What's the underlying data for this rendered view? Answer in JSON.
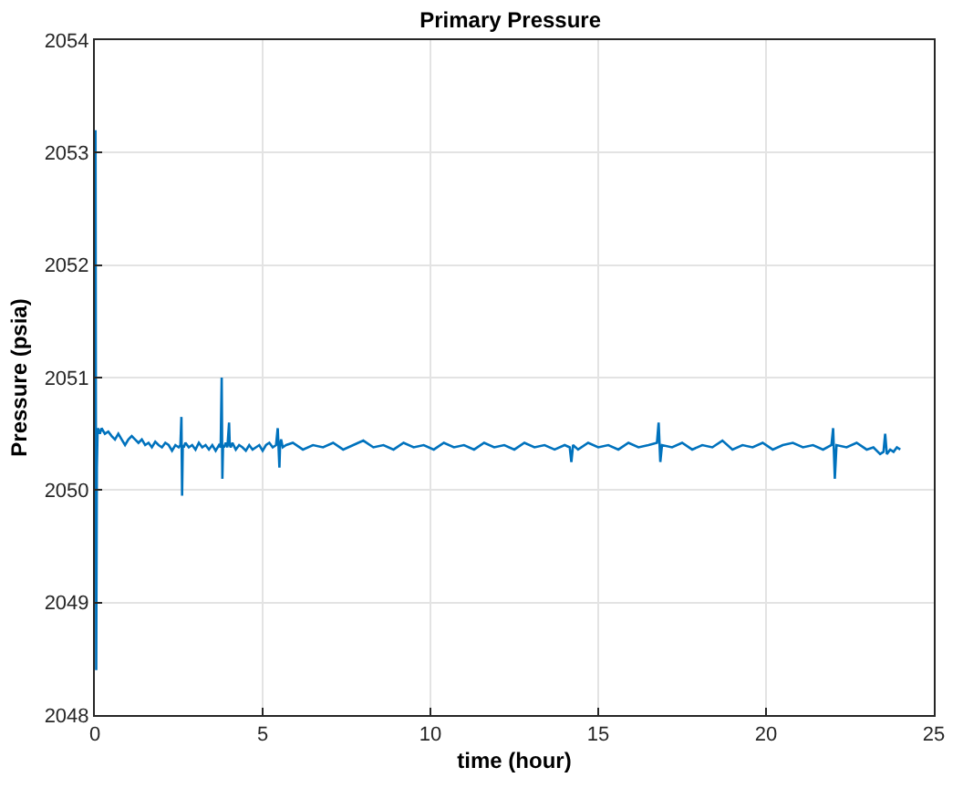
{
  "chart_data": {
    "type": "line",
    "title": "Primary Pressure",
    "xlabel": "time (hour)",
    "ylabel": "Pressure (psia)",
    "xlim": [
      0,
      25
    ],
    "xticks": [
      0,
      5,
      10,
      15,
      20,
      25
    ],
    "ylim": [
      2048,
      2054
    ],
    "yticks": [
      2048,
      2049,
      2050,
      2051,
      2052,
      2053,
      2054
    ],
    "grid": true,
    "marker": "none",
    "line_style": "solid",
    "series": [
      {
        "color": "#0072bd",
        "x": [
          0,
          0.02,
          0.04,
          0.06,
          0.08,
          0.1,
          0.15,
          0.2,
          0.3,
          0.4,
          0.5,
          0.6,
          0.7,
          0.8,
          0.9,
          1.0,
          1.1,
          1.2,
          1.3,
          1.4,
          1.5,
          1.6,
          1.7,
          1.8,
          1.9,
          2.0,
          2.1,
          2.2,
          2.3,
          2.4,
          2.5,
          2.55,
          2.58,
          2.6,
          2.62,
          2.65,
          2.7,
          2.8,
          2.9,
          3.0,
          3.1,
          3.2,
          3.3,
          3.4,
          3.5,
          3.6,
          3.7,
          3.75,
          3.78,
          3.8,
          3.82,
          3.85,
          3.9,
          3.95,
          4.0,
          4.02,
          4.05,
          4.1,
          4.2,
          4.3,
          4.4,
          4.5,
          4.6,
          4.7,
          4.8,
          4.9,
          5.0,
          5.1,
          5.2,
          5.3,
          5.4,
          5.45,
          5.5,
          5.52,
          5.55,
          5.6,
          5.7,
          5.9,
          6.2,
          6.5,
          6.8,
          7.1,
          7.4,
          7.7,
          8.0,
          8.3,
          8.6,
          8.9,
          9.2,
          9.5,
          9.8,
          10.1,
          10.4,
          10.7,
          11.0,
          11.3,
          11.6,
          11.9,
          12.2,
          12.5,
          12.8,
          13.1,
          13.4,
          13.7,
          14.0,
          14.15,
          14.2,
          14.25,
          14.4,
          14.7,
          15.0,
          15.3,
          15.6,
          15.9,
          16.2,
          16.5,
          16.75,
          16.8,
          16.85,
          16.9,
          17.2,
          17.5,
          17.8,
          18.1,
          18.4,
          18.7,
          19.0,
          19.3,
          19.6,
          19.9,
          20.2,
          20.5,
          20.8,
          21.1,
          21.4,
          21.7,
          21.95,
          22.0,
          22.05,
          22.1,
          22.4,
          22.7,
          23.0,
          23.2,
          23.4,
          23.5,
          23.55,
          23.6,
          23.7,
          23.8,
          23.9,
          24.0
        ],
        "values": [
          2050.5,
          2053.2,
          2048.4,
          2050.2,
          2050.5,
          2050.55,
          2050.5,
          2050.55,
          2050.5,
          2050.52,
          2050.48,
          2050.45,
          2050.5,
          2050.45,
          2050.4,
          2050.45,
          2050.48,
          2050.45,
          2050.42,
          2050.45,
          2050.4,
          2050.42,
          2050.38,
          2050.43,
          2050.4,
          2050.38,
          2050.42,
          2050.4,
          2050.35,
          2050.4,
          2050.38,
          2050.4,
          2050.65,
          2049.95,
          2050.4,
          2050.38,
          2050.42,
          2050.38,
          2050.4,
          2050.36,
          2050.42,
          2050.38,
          2050.4,
          2050.36,
          2050.4,
          2050.35,
          2050.4,
          2050.38,
          2051.0,
          2050.1,
          2050.4,
          2050.38,
          2050.42,
          2050.38,
          2050.6,
          2050.4,
          2050.38,
          2050.42,
          2050.36,
          2050.4,
          2050.38,
          2050.35,
          2050.4,
          2050.36,
          2050.38,
          2050.4,
          2050.35,
          2050.4,
          2050.42,
          2050.38,
          2050.4,
          2050.55,
          2050.2,
          2050.4,
          2050.45,
          2050.38,
          2050.4,
          2050.42,
          2050.36,
          2050.4,
          2050.38,
          2050.42,
          2050.36,
          2050.4,
          2050.44,
          2050.38,
          2050.4,
          2050.36,
          2050.42,
          2050.38,
          2050.4,
          2050.36,
          2050.42,
          2050.38,
          2050.4,
          2050.36,
          2050.42,
          2050.38,
          2050.4,
          2050.36,
          2050.42,
          2050.38,
          2050.4,
          2050.36,
          2050.4,
          2050.38,
          2050.25,
          2050.4,
          2050.36,
          2050.42,
          2050.38,
          2050.4,
          2050.36,
          2050.42,
          2050.38,
          2050.4,
          2050.42,
          2050.6,
          2050.25,
          2050.4,
          2050.38,
          2050.42,
          2050.36,
          2050.4,
          2050.38,
          2050.44,
          2050.36,
          2050.4,
          2050.38,
          2050.42,
          2050.36,
          2050.4,
          2050.42,
          2050.38,
          2050.4,
          2050.36,
          2050.4,
          2050.55,
          2050.1,
          2050.4,
          2050.38,
          2050.42,
          2050.36,
          2050.38,
          2050.32,
          2050.34,
          2050.5,
          2050.32,
          2050.36,
          2050.34,
          2050.38,
          2050.36
        ]
      }
    ]
  }
}
